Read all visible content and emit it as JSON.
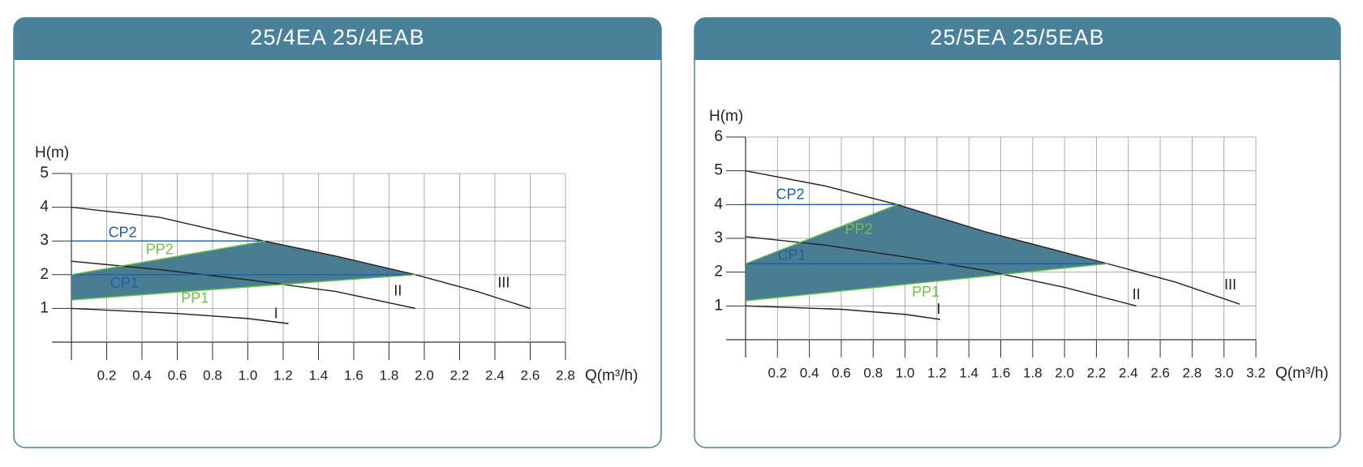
{
  "chart_data": [
    {
      "type": "line",
      "title": "25/4EA 25/4EAB",
      "y_label": "H(m)",
      "x_label": "Q(m³/h)",
      "xlim": [
        0,
        2.8
      ],
      "ylim": [
        0,
        5
      ],
      "grid": true,
      "xticks": [
        0.2,
        0.4,
        0.6,
        0.8,
        {
          "value": 1.0,
          "label": "1.0"
        },
        1.2,
        1.4,
        1.6,
        1.8,
        {
          "value": 2.0,
          "label": "2.0"
        },
        2.2,
        2.4,
        2.6,
        2.8
      ],
      "yticks": [
        1,
        2,
        3,
        4,
        5
      ],
      "area": {
        "color": "#4a7d92",
        "x": [
          0,
          0,
          1.1,
          1.5,
          1.95
        ],
        "values": [
          1.25,
          2.0,
          3.0,
          2.55,
          2.0
        ]
      },
      "series": [
        {
          "name": "III",
          "color": "#222222",
          "x": [
            0,
            0.5,
            1.0,
            1.5,
            1.95,
            2.3,
            2.6
          ],
          "values": [
            4.0,
            3.7,
            3.1,
            2.55,
            2.0,
            1.5,
            1.0
          ]
        },
        {
          "name": "II",
          "color": "#222222",
          "x": [
            0,
            0.5,
            1.0,
            1.5,
            1.95
          ],
          "values": [
            2.4,
            2.15,
            1.85,
            1.5,
            1.0
          ]
        },
        {
          "name": "I",
          "color": "#222222",
          "x": [
            0,
            0.6,
            1.0,
            1.23
          ],
          "values": [
            1.0,
            0.85,
            0.7,
            0.55
          ]
        },
        {
          "name": "CP2",
          "color": "#1b5faa",
          "x": [
            0,
            1.1
          ],
          "values": [
            3.0,
            3.0
          ]
        },
        {
          "name": "CP1",
          "color": "#1b5faa",
          "x": [
            0,
            1.95
          ],
          "values": [
            2.0,
            2.0
          ]
        },
        {
          "name": "PP2",
          "color": "#6cc24a",
          "x": [
            0,
            1.1
          ],
          "values": [
            2.0,
            3.0
          ]
        },
        {
          "name": "PP1",
          "color": "#6cc24a",
          "x": [
            0,
            1.95
          ],
          "values": [
            1.25,
            2.0
          ]
        }
      ]
    },
    {
      "type": "line",
      "title": "25/5EA 25/5EAB",
      "y_label": "H(m)",
      "x_label": "Q(m³/h)",
      "xlim": [
        0,
        3.2
      ],
      "ylim": [
        0,
        6
      ],
      "grid": true,
      "xticks": [
        0.2,
        0.4,
        0.6,
        0.8,
        {
          "value": 1.0,
          "label": "1.0"
        },
        1.2,
        1.4,
        1.6,
        1.8,
        {
          "value": 2.0,
          "label": "2.0"
        },
        2.2,
        2.4,
        2.6,
        2.8,
        {
          "value": 3.0,
          "label": "3.0"
        },
        3.2
      ],
      "yticks": [
        1,
        2,
        3,
        4,
        5,
        6
      ],
      "area": {
        "color": "#4a7d92",
        "x": [
          0,
          0,
          0.95,
          1.5,
          2.27
        ],
        "values": [
          1.15,
          2.25,
          4.0,
          3.2,
          2.25
        ]
      },
      "series": [
        {
          "name": "III",
          "color": "#222222",
          "x": [
            0,
            0.5,
            0.95,
            1.5,
            2.27,
            2.7,
            3.1
          ],
          "values": [
            5.0,
            4.55,
            4.0,
            3.2,
            2.25,
            1.7,
            1.05
          ]
        },
        {
          "name": "II",
          "color": "#222222",
          "x": [
            0,
            0.5,
            1.0,
            1.5,
            2.0,
            2.45
          ],
          "values": [
            3.05,
            2.8,
            2.45,
            2.05,
            1.55,
            1.0
          ]
        },
        {
          "name": "I",
          "color": "#222222",
          "x": [
            0,
            0.6,
            1.0,
            1.22
          ],
          "values": [
            1.0,
            0.9,
            0.75,
            0.6
          ]
        },
        {
          "name": "CP2",
          "color": "#1b5faa",
          "x": [
            0,
            0.95
          ],
          "values": [
            4.0,
            4.0
          ]
        },
        {
          "name": "CP1",
          "color": "#1b5faa",
          "x": [
            0,
            2.27
          ],
          "values": [
            2.25,
            2.25
          ]
        },
        {
          "name": "PP2",
          "color": "#6cc24a",
          "x": [
            0,
            0.95
          ],
          "values": [
            2.25,
            4.0
          ]
        },
        {
          "name": "PP1",
          "color": "#6cc24a",
          "x": [
            0,
            2.27
          ],
          "values": [
            1.15,
            2.25
          ]
        }
      ]
    }
  ]
}
